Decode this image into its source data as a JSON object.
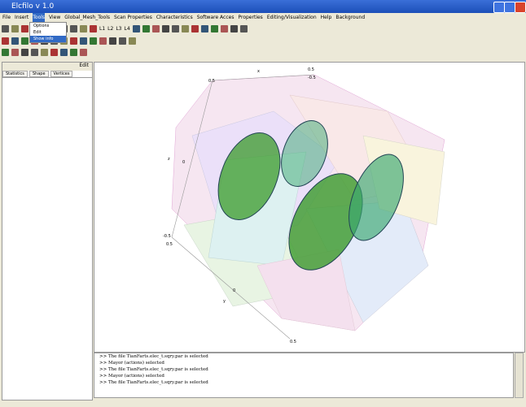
{
  "window": {
    "title": "Elcfilo v 1.0"
  },
  "menu": [
    "File",
    "Insert",
    "Tools",
    "View",
    "Global_Mesh_Tools",
    "Scan Properties",
    "Characteristics",
    "Software Acces",
    "Properties",
    "Editing/Visualization",
    "Help",
    "Background"
  ],
  "dropdown": [
    "Options",
    "Edit",
    "Show info"
  ],
  "toolbar_labels": [
    "L1",
    "L2",
    "L3",
    "L4"
  ],
  "left_panel": {
    "header": "Edit",
    "tabs": [
      "Statistics",
      "Shape",
      "Vertices"
    ]
  },
  "axes": {
    "labels": [
      "0.5",
      "-0.5",
      "0.5",
      "x",
      "z",
      "0",
      "-0.5",
      "0.5",
      "y",
      "0",
      "0.5"
    ]
  },
  "console": [
    ">> The file TianFarts.elec_t.sqry.par is selected",
    ">> Mayor (actions) selected",
    ">> The file TianFarts.elec_t.sqry.par is selected",
    ">> Mayor (actions) selected",
    ">> The file TianFarts.elec_t.sqry.par is selected"
  ]
}
